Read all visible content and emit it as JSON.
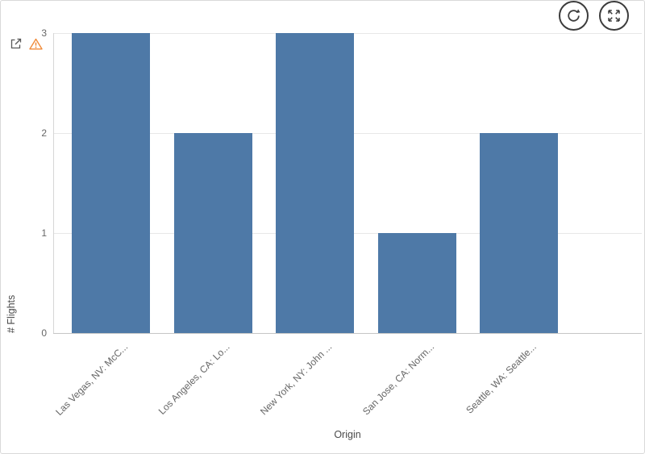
{
  "colors": {
    "grid": "#e7e7e7",
    "axis-text": "#666666",
    "title-text": "#4a4a4a",
    "icon": "#3c3c3c",
    "muted-icon": "#595959",
    "warning": "#f08b3a",
    "border": "#d9d9d9"
  },
  "icons": {
    "top_left": [
      "open-in-new-icon",
      "warning-icon"
    ],
    "toolbar": [
      "refresh-icon",
      "fullscreen-icon"
    ]
  },
  "chart_data": {
    "type": "bar",
    "title": "",
    "categories": [
      "Las Vegas, NV: McC...",
      "Los Angeles, CA: Lo...",
      "New York, NY: John ...",
      "San Jose, CA: Norm...",
      "Seattle, WA: Seattle..."
    ],
    "values": [
      3,
      2,
      3,
      1,
      2
    ],
    "xlabel": "Origin",
    "ylabel": "# Flights",
    "ylim": [
      0,
      3
    ],
    "yticks": [
      0,
      1,
      2,
      3
    ],
    "bar_color": "#4e79a7",
    "grid": true,
    "legend": false
  }
}
